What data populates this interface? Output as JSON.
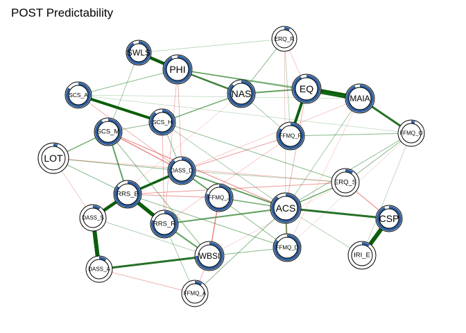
{
  "title": "POST Predictability",
  "colors": {
    "positive_edge": "#1f7a1f",
    "strong_positive_edge": "#0b5e0b",
    "negative_edge": "#e03a3a",
    "pie_fill": "#2f5f9e",
    "pie_track": "#ffffff",
    "node_fill": "#ffffff",
    "node_stroke": "#000000"
  },
  "nodes": [
    {
      "id": "SWLS",
      "label": "SWLS",
      "predictability": 0.92
    },
    {
      "id": "PHI",
      "label": "PHI",
      "predictability": 0.93
    },
    {
      "id": "ERQ_R",
      "label": "ERQ_R",
      "predictability": 0.08
    },
    {
      "id": "SCS_A",
      "label": "SCS_A",
      "predictability": 0.85
    },
    {
      "id": "NAS",
      "label": "NAS",
      "predictability": 0.88
    },
    {
      "id": "EQ",
      "label": "EQ",
      "predictability": 0.93
    },
    {
      "id": "MAIA",
      "label": "MAIA",
      "predictability": 0.94
    },
    {
      "id": "SCS_H",
      "label": "SCS_H",
      "predictability": 0.9
    },
    {
      "id": "SCS_M",
      "label": "SCS_M",
      "predictability": 0.92
    },
    {
      "id": "FFMQ_R",
      "label": "FFMQ_R",
      "predictability": 0.85
    },
    {
      "id": "FFMQ_O",
      "label": "FFMQ_O",
      "predictability": 0.05
    },
    {
      "id": "LOT",
      "label": "LOT",
      "predictability": 0.05
    },
    {
      "id": "DASS_D",
      "label": "DASS_D",
      "predictability": 0.9
    },
    {
      "id": "ERQ_S",
      "label": "ERQ_S",
      "predictability": 0.1
    },
    {
      "id": "RRS_B",
      "label": "RRS_B",
      "predictability": 0.86
    },
    {
      "id": "FFMQ_J",
      "label": "FFMQ_J",
      "predictability": 0.8
    },
    {
      "id": "ACS",
      "label": "ACS",
      "predictability": 0.9
    },
    {
      "id": "CSP",
      "label": "CSP",
      "predictability": 0.94
    },
    {
      "id": "DASS_S",
      "label": "DASS_S",
      "predictability": 0.1
    },
    {
      "id": "RRS_R",
      "label": "RRS_R",
      "predictability": 0.8
    },
    {
      "id": "FFMQ_D",
      "label": "FFMQ_D",
      "predictability": 0.85
    },
    {
      "id": "IRI_E",
      "label": "IRI_E",
      "predictability": 0.1
    },
    {
      "id": "WBSI",
      "label": "WBSI",
      "predictability": 0.75
    },
    {
      "id": "DASS_A",
      "label": "DASS_A",
      "predictability": 0.1
    },
    {
      "id": "FFMQ_A",
      "label": "FFMQ_A",
      "predictability": 0.1
    }
  ],
  "edges": [
    {
      "a": "SWLS",
      "b": "PHI",
      "sign": "+",
      "w": 4.5
    },
    {
      "a": "EQ",
      "b": "MAIA",
      "sign": "+",
      "w": 7
    },
    {
      "a": "EQ",
      "b": "FFMQ_R",
      "sign": "+",
      "w": 4
    },
    {
      "a": "CSP",
      "b": "IRI_E",
      "sign": "+",
      "w": 6
    },
    {
      "a": "DASS_S",
      "b": "DASS_A",
      "sign": "+",
      "w": 6
    },
    {
      "a": "RRS_B",
      "b": "RRS_R",
      "sign": "+",
      "w": 5.5
    },
    {
      "a": "RRS_B",
      "b": "DASS_S",
      "sign": "+",
      "w": 4.5
    },
    {
      "a": "SCS_A",
      "b": "SCS_H",
      "sign": "+",
      "w": 4
    },
    {
      "a": "ACS",
      "b": "CSP",
      "sign": "+",
      "w": 3
    },
    {
      "a": "MAIA",
      "b": "FFMQ_O",
      "sign": "+",
      "w": 3
    },
    {
      "a": "DASS_D",
      "b": "RRS_B",
      "sign": "+",
      "w": 3.5
    },
    {
      "a": "DASS_A",
      "b": "WBSI",
      "sign": "+",
      "w": 3
    },
    {
      "a": "NAS",
      "b": "EQ",
      "sign": "+",
      "w": 2
    },
    {
      "a": "SCS_H",
      "b": "NAS",
      "sign": "+",
      "w": 1.5
    },
    {
      "a": "PHI",
      "b": "NAS",
      "sign": "+",
      "w": 2.5
    },
    {
      "a": "ACS",
      "b": "FFMQ_D",
      "sign": "+",
      "w": 2
    },
    {
      "a": "DASS_D",
      "b": "FFMQ_J",
      "sign": "+",
      "w": 2
    },
    {
      "a": "DASS_D",
      "b": "ACS",
      "sign": "+",
      "w": 2
    },
    {
      "a": "RRS_R",
      "b": "ACS",
      "sign": "+",
      "w": 2
    },
    {
      "a": "RRS_R",
      "b": "WBSI",
      "sign": "+",
      "w": 2
    },
    {
      "a": "SCS_M",
      "b": "RRS_B",
      "sign": "+",
      "w": 2
    },
    {
      "a": "LOT",
      "b": "SCS_M",
      "sign": "+",
      "w": 1.5
    },
    {
      "a": "ERQ_S",
      "b": "ACS",
      "sign": "+",
      "w": 1.5
    },
    {
      "a": "FFMQ_J",
      "b": "ACS",
      "sign": "+",
      "w": 1.5
    },
    {
      "a": "PHI",
      "b": "MAIA",
      "sign": "+",
      "w": 1.5
    },
    {
      "a": "SCS_A",
      "b": "PHI",
      "sign": "+",
      "w": 1
    },
    {
      "a": "PHI",
      "b": "EQ",
      "sign": "+",
      "w": 1
    },
    {
      "a": "SCS_M",
      "b": "SCS_H",
      "sign": "+",
      "w": 1
    },
    {
      "a": "SCS_H",
      "b": "ERQ_S",
      "sign": "+",
      "w": 1
    },
    {
      "a": "SCS_H",
      "b": "DASS_D",
      "sign": "+",
      "w": 1
    },
    {
      "a": "ERQ_R",
      "b": "NAS",
      "sign": "+",
      "w": 1
    },
    {
      "a": "FFMQ_R",
      "b": "FFMQ_O",
      "sign": "+",
      "w": 1
    },
    {
      "a": "LOT",
      "b": "DASS_D",
      "sign": "+",
      "w": 1
    },
    {
      "a": "LOT",
      "b": "RRS_B",
      "sign": "+",
      "w": 1
    },
    {
      "a": "SCS_M",
      "b": "WBSI",
      "sign": "+",
      "w": 1
    },
    {
      "a": "RRS_B",
      "b": "FFMQ_D",
      "sign": "+",
      "w": 1
    },
    {
      "a": "FFMQ_J",
      "b": "FFMQ_D",
      "sign": "+",
      "w": 1
    },
    {
      "a": "FFMQ_O",
      "b": "ERQ_S",
      "sign": "+",
      "w": 1
    },
    {
      "a": "FFMQ_O",
      "b": "ACS",
      "sign": "+",
      "w": 1
    },
    {
      "a": "WBSI",
      "b": "FFMQ_D",
      "sign": "+",
      "w": 1
    },
    {
      "a": "FFMQ_A",
      "b": "ACS",
      "sign": "+",
      "w": 1
    },
    {
      "a": "SCS_H",
      "b": "ACS",
      "sign": "+",
      "w": 0.8
    },
    {
      "a": "SWLS",
      "b": "SCS_M",
      "sign": "+",
      "w": 0.8
    },
    {
      "a": "NAS",
      "b": "FFMQ_R",
      "sign": "+",
      "w": 0.8
    },
    {
      "a": "MAIA",
      "b": "ACS",
      "sign": "+",
      "w": 0.8
    },
    {
      "a": "ERQ_R",
      "b": "FFMQ_R",
      "sign": "+",
      "w": 0.7
    },
    {
      "a": "DASS_S",
      "b": "WBSI",
      "sign": "+",
      "w": 0.7
    },
    {
      "a": "IRI_E",
      "b": "FFMQ_O",
      "sign": "+",
      "w": 0.6
    },
    {
      "a": "IRI_E",
      "b": "ACS",
      "sign": "+",
      "w": 0.7
    },
    {
      "a": "SCS_A",
      "b": "MAIA",
      "sign": "+",
      "w": 0.5
    },
    {
      "a": "SCS_A",
      "b": "FFMQ_O",
      "sign": "+",
      "w": 0.5
    },
    {
      "a": "DASS_D",
      "b": "ERQ_S",
      "sign": "+",
      "w": 0.7
    },
    {
      "a": "RRS_R",
      "b": "FFMQ_A",
      "sign": "+",
      "w": 0.8
    },
    {
      "a": "SWLS",
      "b": "ERQ_R",
      "sign": "+",
      "w": 0.6
    },
    {
      "a": "RRS_B",
      "b": "ERQ_S",
      "sign": "-",
      "w": 1
    },
    {
      "a": "RRS_B",
      "b": "FFMQ_J",
      "sign": "-",
      "w": 1
    },
    {
      "a": "SCS_M",
      "b": "DASS_D",
      "sign": "-",
      "w": 1.5
    },
    {
      "a": "SCS_M",
      "b": "ACS",
      "sign": "-",
      "w": 1.2
    },
    {
      "a": "FFMQ_J",
      "b": "WBSI",
      "sign": "-",
      "w": 1.5
    },
    {
      "a": "ERQ_S",
      "b": "CSP",
      "sign": "-",
      "w": 1.2
    },
    {
      "a": "FFMQ_R",
      "b": "DASS_D",
      "sign": "-",
      "w": 1
    },
    {
      "a": "ACS",
      "b": "FFMQ_D",
      "sign": "-",
      "w": 0.8
    },
    {
      "a": "EQ",
      "b": "ACS",
      "sign": "-",
      "w": 0.8
    },
    {
      "a": "LOT",
      "b": "ERQ_S",
      "sign": "-",
      "w": 0.7
    },
    {
      "a": "DASS_A",
      "b": "FFMQ_A",
      "sign": "-",
      "w": 0.8
    },
    {
      "a": "FFMQ_A",
      "b": "WBSI",
      "sign": "-",
      "w": 0.8
    },
    {
      "a": "PHI",
      "b": "DASS_D",
      "sign": "-",
      "w": 0.8
    },
    {
      "a": "SCS_A",
      "b": "DASS_D",
      "sign": "-",
      "w": 0.8
    },
    {
      "a": "PHI",
      "b": "RRS_R",
      "sign": "-",
      "w": 0.7
    },
    {
      "a": "ERQ_R",
      "b": "EQ",
      "sign": "-",
      "w": 0.6
    },
    {
      "a": "ERQ_R",
      "b": "ACS",
      "sign": "-",
      "w": 0.6
    },
    {
      "a": "MAIA",
      "b": "DASS_D",
      "sign": "-",
      "w": 0.6
    },
    {
      "a": "FFMQ_R",
      "b": "RRS_R",
      "sign": "-",
      "w": 0.6
    },
    {
      "a": "NAS",
      "b": "DASS_S",
      "sign": "-",
      "w": 0.5
    },
    {
      "a": "SCS_H",
      "b": "RRS_R",
      "sign": "-",
      "w": 0.8
    },
    {
      "a": "LOT",
      "b": "DASS_S",
      "sign": "-",
      "w": 0.6
    },
    {
      "a": "FFMQ_O",
      "b": "FFMQ_D",
      "sign": "-",
      "w": 0.5
    },
    {
      "a": "MAIA",
      "b": "FFMQ_D",
      "sign": "-",
      "w": 0.5
    },
    {
      "a": "ERQ_S",
      "b": "WBSI",
      "sign": "-",
      "w": 0.5
    }
  ]
}
